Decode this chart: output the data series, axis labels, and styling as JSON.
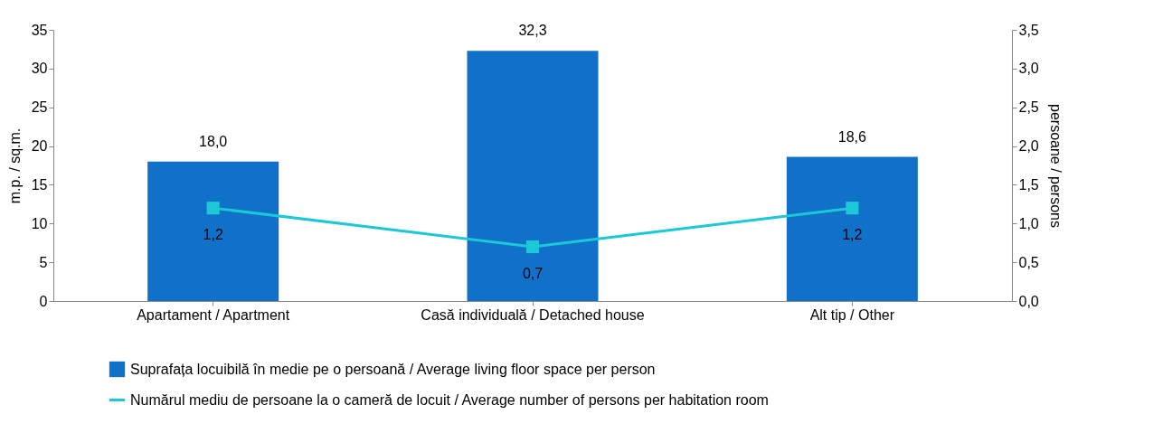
{
  "chart_data": {
    "type": "bar",
    "categories": [
      "Apartament / Apartment",
      "Casă individuală / Detached house",
      "Alt tip / Other"
    ],
    "series": [
      {
        "name": "Suprafața locuibilă în medie pe o persoană / Average living floor space per person",
        "color": "#1170c8",
        "values": [
          18.0,
          32.3,
          18.6
        ],
        "value_labels": [
          "18,0",
          "32,3",
          "18,6"
        ]
      },
      {
        "name": "Numărul mediu de persoane la o cameră de locuit / Average number of persons per habitation room",
        "type": "line",
        "axis": "y2",
        "marker": "square",
        "color": "#1cc8d8",
        "values": [
          1.2,
          0.7,
          1.2
        ],
        "value_labels": [
          "1,2",
          "0,7",
          "1,2"
        ]
      }
    ],
    "ylabel": "m.p. / sq.m.",
    "y2label": "persoane / persons",
    "ylim": [
      0,
      35
    ],
    "yticks": [
      0,
      5,
      10,
      15,
      20,
      25,
      30,
      35
    ],
    "y2lim": [
      0,
      3.5
    ],
    "y2ticks": [
      {
        "value": 0,
        "label": "0,0"
      },
      {
        "value": 0.5,
        "label": "0,5"
      },
      {
        "value": 1,
        "label": "1,0"
      },
      {
        "value": 1.5,
        "label": "1,5"
      },
      {
        "value": 2,
        "label": "2,0"
      },
      {
        "value": 2.5,
        "label": "2,5"
      },
      {
        "value": 3,
        "label": "3,0"
      },
      {
        "value": 3.5,
        "label": "3,5"
      }
    ],
    "legend": "bottom",
    "grid": false
  }
}
